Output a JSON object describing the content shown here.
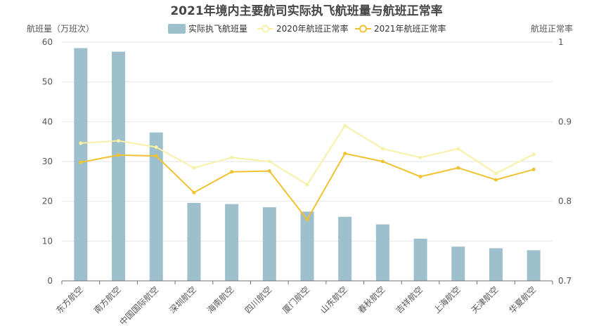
{
  "chart_data": {
    "type": "bar",
    "title": "2021年境内主要航司实际执飞航班量与航班正常率",
    "y_left_label": "航班量（万班次）",
    "y_right_label": "航班正常率",
    "y_left_range": [
      0,
      60
    ],
    "y_left_ticks": [
      "0",
      "10",
      "20",
      "30",
      "40",
      "50",
      "60"
    ],
    "y_right_range": [
      0.7,
      1.0
    ],
    "y_right_ticks": [
      "0.7",
      "0.8",
      "0.9",
      "1"
    ],
    "grid": true,
    "legend_position": "top-center",
    "categories": [
      "东方航空",
      "南方航空",
      "中国国际航空",
      "深圳航空",
      "海南航空",
      "四川航空",
      "厦门航空",
      "山东航空",
      "春秋航空",
      "吉祥航空",
      "上海航空",
      "天津航空",
      "华夏航空"
    ],
    "series": [
      {
        "name": "实际执飞航班量",
        "type": "bar",
        "axis": "left",
        "color": "#9ebfcc",
        "values": [
          58.5,
          57.6,
          37.3,
          19.6,
          19.3,
          18.5,
          17.4,
          16.1,
          14.2,
          10.6,
          8.6,
          8.2,
          7.7
        ]
      },
      {
        "name": "2020年航班正常率",
        "type": "line",
        "axis": "right",
        "color": "#f7f0a6",
        "values": [
          0.873,
          0.876,
          0.868,
          0.842,
          0.855,
          0.85,
          0.821,
          0.895,
          0.866,
          0.855,
          0.866,
          0.835,
          0.859
        ]
      },
      {
        "name": "2021年航班正常率",
        "type": "line",
        "axis": "right",
        "color": "#f0c230",
        "values": [
          0.849,
          0.858,
          0.857,
          0.811,
          0.837,
          0.838,
          0.777,
          0.86,
          0.85,
          0.831,
          0.842,
          0.827,
          0.84
        ]
      }
    ]
  }
}
